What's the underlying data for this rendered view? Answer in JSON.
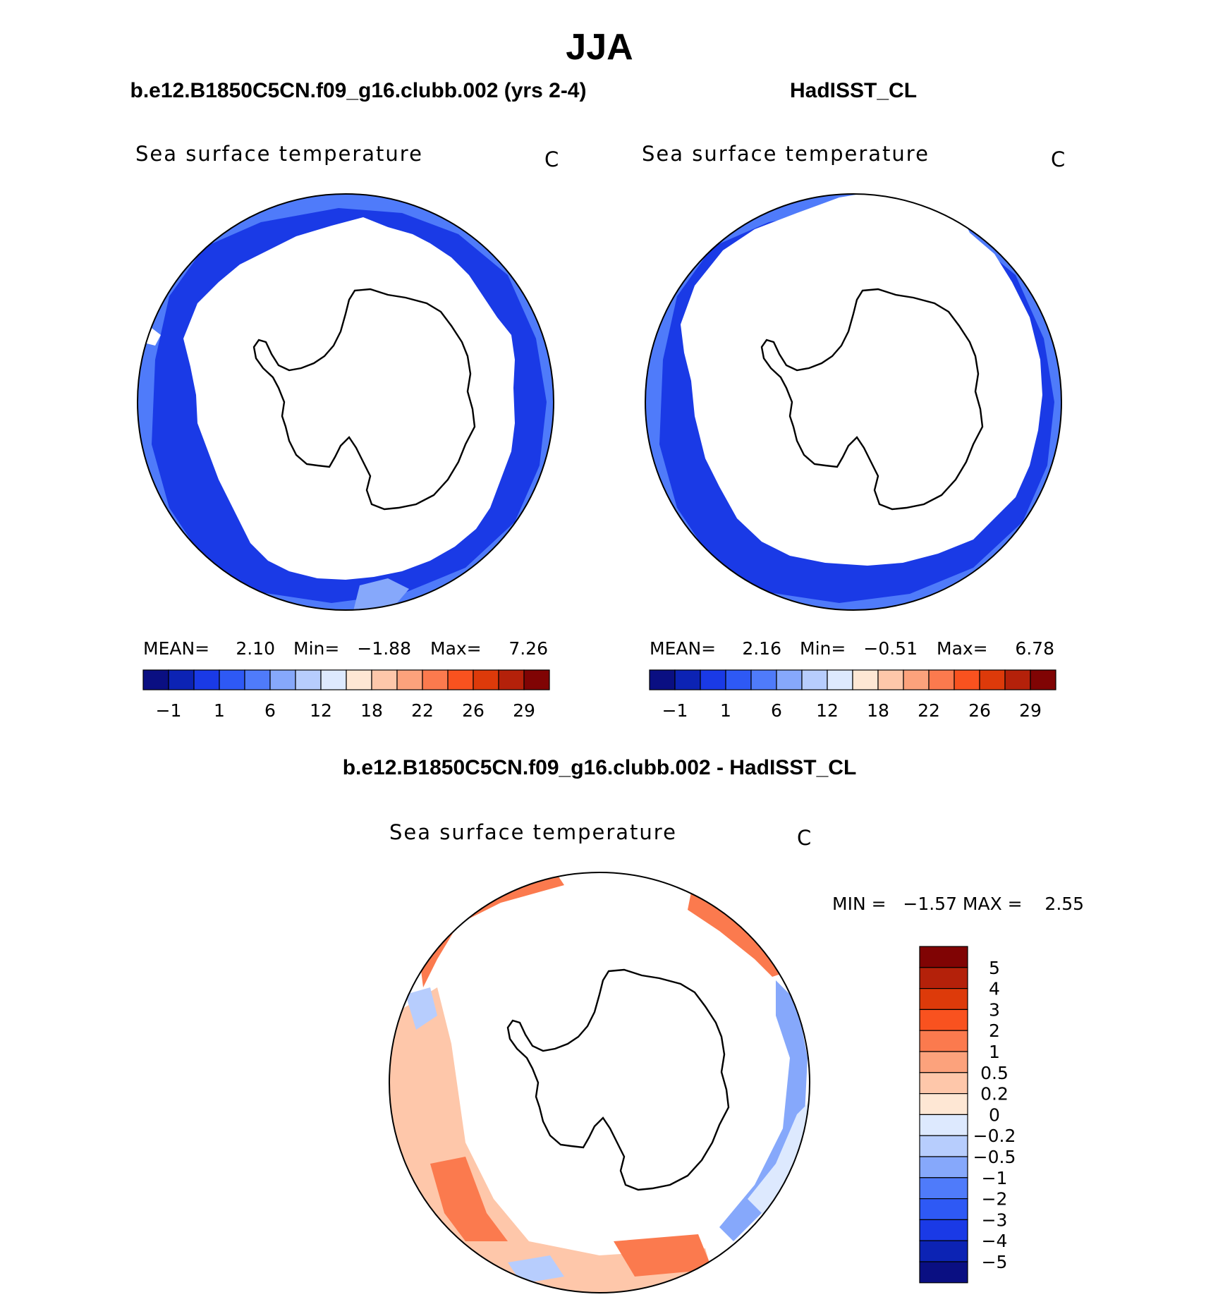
{
  "title": "JJA",
  "panels": [
    {
      "id": "model",
      "header": "b.e12.B1850C5CN.f09_g16.clubb.002 (yrs 2-4)",
      "variable": "Sea surface temperature",
      "units": "C",
      "stats": [
        {
          "label": "MEAN=",
          "value": "2.10"
        },
        {
          "label": "Min=",
          "value": "−1.88"
        },
        {
          "label": "Max=",
          "value": "7.26"
        }
      ]
    },
    {
      "id": "obs",
      "header": "HadISST_CL",
      "variable": "Sea surface temperature",
      "units": "C",
      "stats": [
        {
          "label": "MEAN=",
          "value": "2.16"
        },
        {
          "label": "Min=",
          "value": "−0.51"
        },
        {
          "label": "Max=",
          "value": "6.78"
        }
      ]
    },
    {
      "id": "diff",
      "header": "b.e12.B1850C5CN.f09_g16.clubb.002 - HadISST_CL",
      "variable": "Sea surface temperature",
      "units": "C",
      "minmax": "MIN =   −1.57 MAX =    2.55"
    }
  ],
  "chart_data": [
    {
      "type": "heatmap",
      "title": "Sea surface temperature",
      "subtitle": "b.e12.B1850C5CN.f09_g16.clubb.002 (yrs 2-4)",
      "units": "C",
      "projection": "south polar stereographic",
      "mean": 2.1,
      "min": -1.88,
      "max": 7.26,
      "colorbar_levels": [
        -1,
        1,
        6,
        12,
        18,
        22,
        26,
        29
      ],
      "colorbar_colors": [
        "#0a0f82",
        "#0c23b4",
        "#1a3ae6",
        "#2e59f5",
        "#4f7bfa",
        "#86a8fb",
        "#b7cdfd",
        "#dde9fe",
        "#fee7d4",
        "#fec7aa",
        "#fca27c",
        "#fb7a4e",
        "#f9521f",
        "#dd3a0a",
        "#b4210a",
        "#800404"
      ],
      "ocean_colors": {
        "near_ice": "#1a3ae6",
        "open_ocean": "#4f7bfa",
        "warm_patch": "#86a8fb"
      }
    },
    {
      "type": "heatmap",
      "title": "Sea surface temperature",
      "subtitle": "HadISST_CL",
      "units": "C",
      "projection": "south polar stereographic",
      "mean": 2.16,
      "min": -0.51,
      "max": 6.78,
      "colorbar_levels": [
        -1,
        1,
        6,
        12,
        18,
        22,
        26,
        29
      ],
      "colorbar_colors": [
        "#0a0f82",
        "#0c23b4",
        "#1a3ae6",
        "#2e59f5",
        "#4f7bfa",
        "#86a8fb",
        "#b7cdfd",
        "#dde9fe",
        "#fee7d4",
        "#fec7aa",
        "#fca27c",
        "#fb7a4e",
        "#f9521f",
        "#dd3a0a",
        "#b4210a",
        "#800404"
      ],
      "ocean_colors": {
        "near_ice": "#1a3ae6",
        "open_ocean": "#4f7bfa",
        "warm_patch": "#86a8fb"
      }
    },
    {
      "type": "heatmap",
      "title": "Sea surface temperature",
      "subtitle": "b.e12.B1850C5CN.f09_g16.clubb.002 - HadISST_CL",
      "units": "C",
      "projection": "south polar stereographic",
      "min": -1.57,
      "max": 2.55,
      "colorbar_levels": [
        "5",
        "4",
        "3",
        "2",
        "1",
        "0.5",
        "0.2",
        "0",
        "−0.2",
        "−0.5",
        "−1",
        "−2",
        "−3",
        "−4",
        "−5"
      ],
      "colorbar_colors": [
        "#800404",
        "#b4210a",
        "#dd3a0a",
        "#f9521f",
        "#fb7a4e",
        "#fca27c",
        "#fec7aa",
        "#fee7d4",
        "#dde9fe",
        "#b7cdfd",
        "#86a8fb",
        "#4f7bfa",
        "#2e59f5",
        "#1a3ae6",
        "#0c23b4",
        "#0a0f82"
      ]
    }
  ]
}
